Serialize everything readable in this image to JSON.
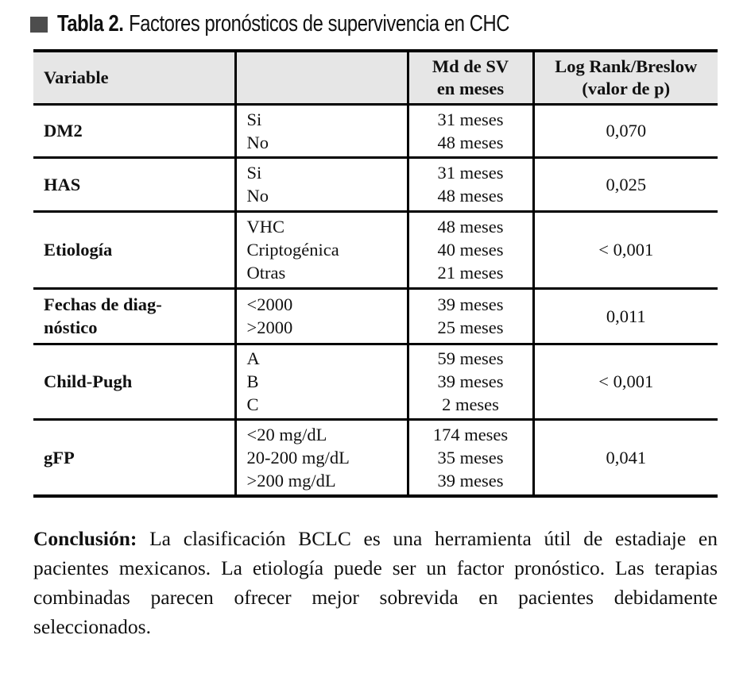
{
  "colors": {
    "header_bg": "#e6e6e6",
    "border": "#000000",
    "title_square": "#4d4d4d",
    "text": "#111111"
  },
  "title": {
    "label": "Tabla 2.",
    "caption": "Factores pronósticos de supervivencia en CHC"
  },
  "table": {
    "headers": [
      "Variable",
      "",
      "Md de SV\nen meses",
      "Log Rank/Breslow\n(valor de p)"
    ],
    "rows": [
      {
        "variable": "DM2",
        "categories": "Si\nNo",
        "medians": "31 meses\n48 meses",
        "p": "0,070"
      },
      {
        "variable": "HAS",
        "categories": "Si\nNo",
        "medians": "31 meses\n48 meses",
        "p": "0,025"
      },
      {
        "variable": "Etiología",
        "categories": "VHC\nCriptogénica\nOtras",
        "medians": "48 meses\n40 meses\n21 meses",
        "p": "< 0,001"
      },
      {
        "variable": "Fechas de diag-\nnóstico",
        "categories": "<2000\n>2000",
        "medians": "39 meses\n25 meses",
        "p": "0,011"
      },
      {
        "variable": "Child-Pugh",
        "categories": "A\nB\nC",
        "medians": "59 meses\n39 meses\n2 meses",
        "p": "< 0,001"
      },
      {
        "variable": "gFP",
        "categories": "<20 mg/dL\n20-200 mg/dL\n>200 mg/dL",
        "medians": "174 meses\n35 meses\n39 meses",
        "p": "0,041"
      }
    ]
  },
  "conclusion": {
    "label": "Conclusión:",
    "text": " La clasificación BCLC es una herramienta útil de estadiaje en pacientes mexicanos. La etiología puede ser un factor pronóstico. Las terapias combinadas parecen ofrecer mejor sobrevida en pacientes debidamente seleccionados."
  }
}
